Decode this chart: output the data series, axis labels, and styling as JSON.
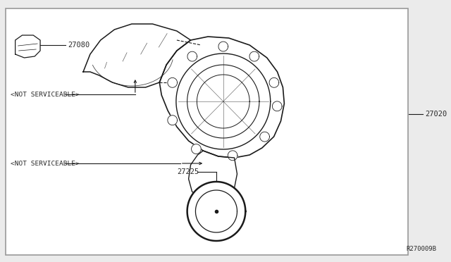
{
  "bg_color": "#ebebeb",
  "border_color": "#999999",
  "line_color": "#1a1a1a",
  "diagram_code": "R270009B",
  "font_size_parts": 7.5,
  "font_size_note": 6.8,
  "font_color": "#2a2a2a",
  "label_27080": "27080",
  "label_27020": "27020",
  "label_27225": "27225",
  "label_ns1": "<NOT SERVICEABLE>",
  "label_ns2": "<NOT SERVICEABLE>"
}
